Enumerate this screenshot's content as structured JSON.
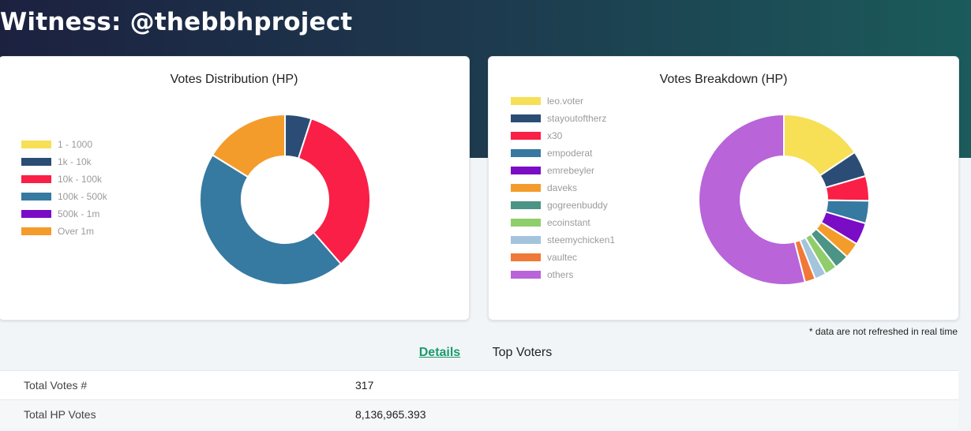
{
  "page": {
    "title": "Witness: @thebbhproject"
  },
  "note": "* data are not refreshed in real time",
  "tabs": [
    {
      "label": "Details",
      "active": true
    },
    {
      "label": "Top Voters",
      "active": false
    }
  ],
  "details": [
    {
      "label": "Total Votes #",
      "value": "317"
    },
    {
      "label": "Total HP Votes",
      "value": "8,136,965.393"
    }
  ],
  "chart_data": [
    {
      "type": "pie",
      "title": "Votes Distribution (HP)",
      "donut": true,
      "legend_position": "left",
      "categories": [
        "1 - 1000",
        "1k - 10k",
        "10k - 100k",
        "100k - 500k",
        "500k - 1m",
        "Over 1m"
      ],
      "values": [
        0.01,
        5.0,
        33.6,
        45.2,
        0.01,
        16.2
      ],
      "colors": [
        "#f7df56",
        "#2b4d75",
        "#f91f47",
        "#3679a1",
        "#7a0cc6",
        "#f49c2b"
      ]
    },
    {
      "type": "pie",
      "title": "Votes Breakdown (HP)",
      "donut": true,
      "legend_position": "top-left",
      "categories": [
        "leo.voter",
        "stayoutoftherz",
        "x30",
        "empoderat",
        "emrebeyler",
        "daveks",
        "gogreenbuddy",
        "ecoinstant",
        "steemychicken1",
        "vaultec",
        "others"
      ],
      "values": [
        15.6,
        4.9,
        4.7,
        4.3,
        4.2,
        3.0,
        2.8,
        2.3,
        2.2,
        2.0,
        54.0
      ],
      "colors": [
        "#f7df56",
        "#2b4d75",
        "#f91f47",
        "#3679a1",
        "#7a0cc6",
        "#f49c2b",
        "#4c9485",
        "#90cd6b",
        "#a3c4dc",
        "#f07838",
        "#b964d8"
      ]
    }
  ]
}
